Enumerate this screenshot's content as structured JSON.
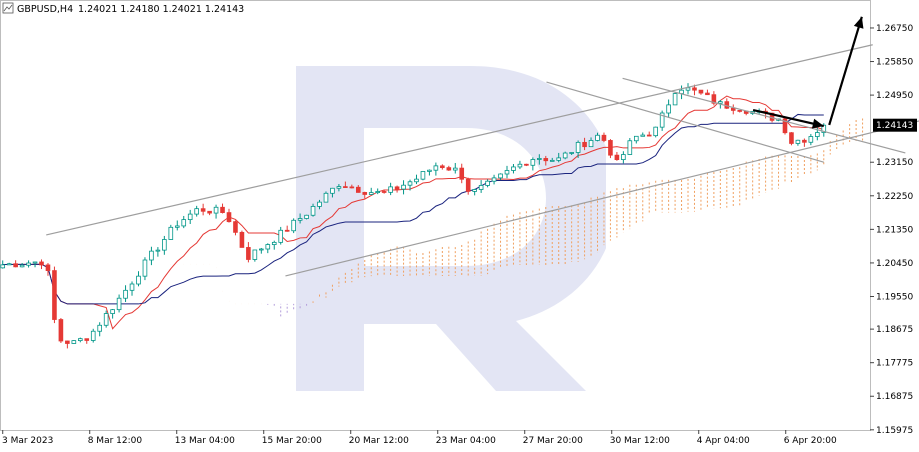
{
  "chart_data": {
    "type": "candlestick",
    "title": {
      "symbol": "GBPUSD,H4",
      "ohlc": "1.24021 1.24180 1.24021 1.24143"
    },
    "current_price": 1.24143,
    "current_price_label": "1.24143",
    "ylim": [
      1.1597,
      1.275
    ],
    "y_ticks": [
      "1.26750",
      "1.25850",
      "1.24950",
      "1.23150",
      "1.22250",
      "1.21350",
      "1.20450",
      "1.19550",
      "1.18675",
      "1.17775",
      "1.16875",
      "1.15975"
    ],
    "x_ticks": [
      "3 Mar 2023",
      "8 Mar 12:00",
      "13 Mar 04:00",
      "15 Mar 20:00",
      "20 Mar 12:00",
      "23 Mar 04:00",
      "27 Mar 20:00",
      "30 Mar 12:00",
      "4 Apr 04:00",
      "6 Apr 20:00"
    ],
    "bars_total": 160,
    "candle_count": 128,
    "anchors": [
      [
        0,
        1.204
      ],
      [
        8,
        1.205
      ],
      [
        10,
        1.184
      ],
      [
        13,
        1.183
      ],
      [
        16,
        1.185
      ],
      [
        22,
        1.196
      ],
      [
        27,
        1.206
      ],
      [
        32,
        1.215
      ],
      [
        36,
        1.219
      ],
      [
        41,
        1.218
      ],
      [
        45,
        1.206
      ],
      [
        50,
        1.211
      ],
      [
        56,
        1.218
      ],
      [
        62,
        1.226
      ],
      [
        66,
        1.224
      ],
      [
        70,
        1.223
      ],
      [
        76,
        1.227
      ],
      [
        80,
        1.231
      ],
      [
        84,
        1.229
      ],
      [
        86,
        1.223
      ],
      [
        90,
        1.226
      ],
      [
        94,
        1.23
      ],
      [
        98,
        1.233
      ],
      [
        102,
        1.232
      ],
      [
        106,
        1.236
      ],
      [
        110,
        1.239
      ],
      [
        113,
        1.231
      ],
      [
        116,
        1.238
      ],
      [
        120,
        1.24
      ],
      [
        124,
        1.252
      ],
      [
        128,
        1.25
      ],
      [
        132,
        1.247
      ],
      [
        136,
        1.246
      ],
      [
        140,
        1.244
      ],
      [
        143,
        1.243
      ],
      [
        145,
        1.237
      ],
      [
        148,
        1.238
      ],
      [
        151,
        1.2414
      ]
    ],
    "trend_lines": [
      {
        "name": "channel-upper",
        "points": [
          [
            8,
            1.212
          ],
          [
            160,
            1.263
          ]
        ],
        "color": "#9e9e9e"
      },
      {
        "name": "channel-lower",
        "points": [
          [
            52,
            1.201
          ],
          [
            181,
            1.247
          ]
        ],
        "color": "#9e9e9e"
      },
      {
        "name": "flag-upper",
        "points": [
          [
            114,
            1.254
          ],
          [
            166,
            1.234
          ]
        ],
        "color": "#9e9e9e"
      },
      {
        "name": "flag-lower",
        "points": [
          [
            100,
            1.253
          ],
          [
            151,
            1.2315
          ]
        ],
        "color": "#9e9e9e"
      }
    ],
    "forecast_arrows": [
      {
        "name": "forecast-down-arrow",
        "from": [
          138,
          1.2455
        ],
        "to": [
          151,
          1.2412
        ]
      },
      {
        "name": "forecast-up-arrow",
        "from": [
          152,
          1.2415
        ],
        "to": [
          158,
          1.2705
        ]
      }
    ],
    "colors": {
      "bull": "#009688",
      "bear": "#e53935",
      "tenkan": "#e53935",
      "kijun": "#1a237e",
      "cloud_up": "#f0a060",
      "cloud_down": "#b39ddb",
      "grid": "#e6e6e6",
      "price_label_bg": "#000000"
    },
    "watermark": "R"
  }
}
